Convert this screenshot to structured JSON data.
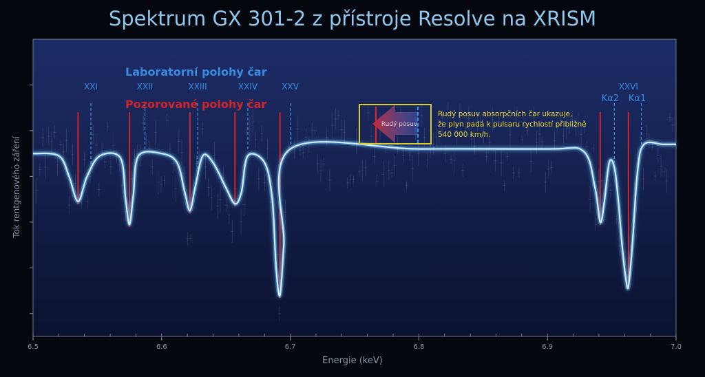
{
  "chart_data": {
    "type": "line",
    "title": "Spektrum GX 301-2 z přístroje Resolve na XRISM",
    "xlabel": "Energie (keV)",
    "ylabel": "Tok rentgenového záření",
    "xlim": [
      6.5,
      7.0
    ],
    "x_ticks": [
      "6.5",
      "6.6",
      "6.7",
      "6.8",
      "6.9",
      "7.0"
    ],
    "series": [
      {
        "name": "",
        "x": [
          6.5,
          6.52,
          6.528,
          6.535,
          6.542,
          6.552,
          6.568,
          6.572,
          6.575,
          6.578,
          6.582,
          6.6,
          6.612,
          6.618,
          6.622,
          6.626,
          6.632,
          6.64,
          6.65,
          6.657,
          6.662,
          6.667,
          6.68,
          6.686,
          6.689,
          6.692,
          6.695,
          6.7,
          6.8,
          6.9,
          6.928,
          6.937,
          6.941,
          6.944,
          6.948,
          6.952,
          6.955,
          6.958,
          6.961,
          6.963,
          6.966,
          6.97,
          6.975,
          6.99,
          7.0
        ],
        "y": [
          1.0,
          0.99,
          0.9,
          0.79,
          0.9,
          0.99,
          0.98,
          0.8,
          0.69,
          0.82,
          0.99,
          1.0,
          0.96,
          0.83,
          0.75,
          0.85,
          0.99,
          0.96,
          0.85,
          0.78,
          0.83,
          0.99,
          0.96,
          0.8,
          0.5,
          0.38,
          0.6,
          1.02,
          1.02,
          1.02,
          1.01,
          0.85,
          0.7,
          0.78,
          0.96,
          0.94,
          0.8,
          0.6,
          0.45,
          0.42,
          0.6,
          0.92,
          1.04,
          1.04,
          1.04
        ]
      }
    ],
    "ylim": [
      0.2,
      1.5
    ],
    "lab_lines": {
      "label": "Laboratorní polohy čar",
      "color": "#3a8be0",
      "lines": [
        {
          "x": 6.545,
          "label": "XXI"
        },
        {
          "x": 6.587,
          "label": "XXII"
        },
        {
          "x": 6.628,
          "label": "XXIII"
        },
        {
          "x": 6.667,
          "label": "XXIV"
        },
        {
          "x": 6.7,
          "label": "XXV"
        },
        {
          "x": 6.952,
          "label": "Kα2"
        },
        {
          "x": 6.973,
          "label": "Kα1"
        }
      ],
      "group_label": {
        "x": 6.963,
        "label": "XXVI"
      }
    },
    "observed_lines": {
      "label": "Pozorované polohy čar",
      "color": "#d0252a",
      "x": [
        6.535,
        6.575,
        6.622,
        6.657,
        6.692,
        6.941,
        6.963
      ]
    },
    "annotation": {
      "arrow_label": "Rudý posuv",
      "text": [
        "Rudý posuv absorpčních čar ukazuje,",
        "že plyn padá k pulsaru rychlostí přibližně",
        "540 000 km/h."
      ]
    }
  }
}
